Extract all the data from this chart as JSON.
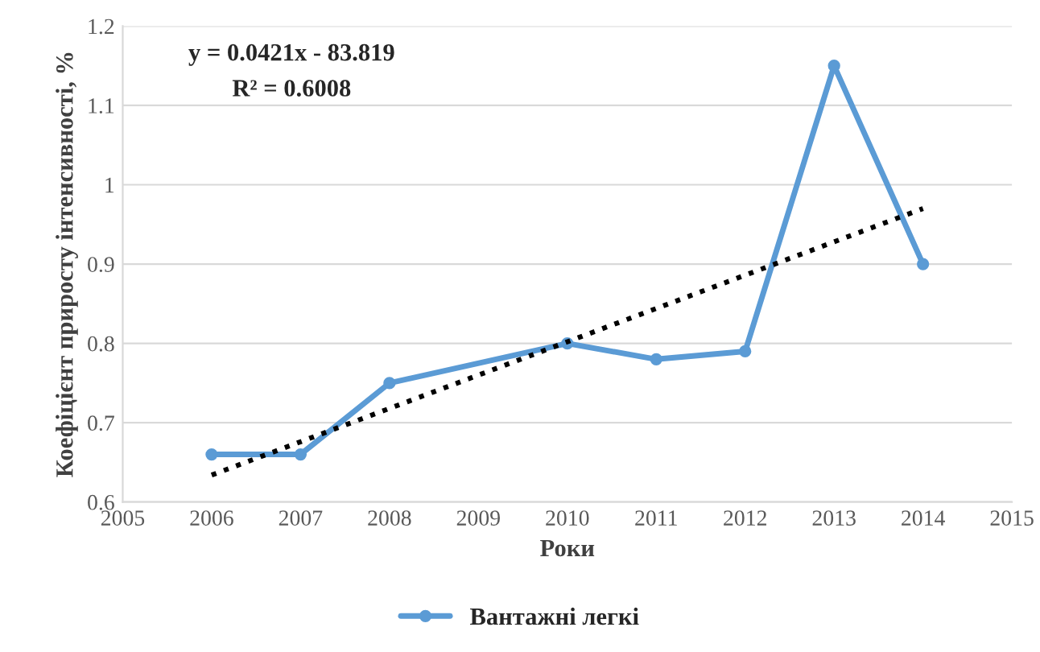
{
  "chart_data": {
    "type": "line",
    "xlabel": "Роки",
    "ylabel": "Коефіцієнт приросту інтенсивності, %",
    "xlim": [
      2005,
      2015
    ],
    "xticks": [
      2005,
      2006,
      2007,
      2008,
      2009,
      2010,
      2011,
      2012,
      2013,
      2014,
      2015
    ],
    "ylim": [
      0.6,
      1.2
    ],
    "yticks": [
      0.6,
      0.7,
      0.8,
      0.9,
      1,
      1.1,
      1.2
    ],
    "grid": "y",
    "legend": "bottom",
    "marker": "circle",
    "line_style": "solid",
    "series": [
      {
        "name": "Вантажні легкі",
        "color": "#5b9bd5",
        "x": [
          2006,
          2007,
          2008,
          2010,
          2011,
          2012,
          2013,
          2014
        ],
        "values": [
          0.66,
          0.66,
          0.75,
          0.8,
          0.78,
          0.79,
          1.15,
          0.9
        ]
      },
      {
        "type": "line",
        "color": "#000000",
        "line_style": "dotted",
        "marker": "none",
        "x": [
          2006,
          2014
        ],
        "values": [
          0.634,
          0.97
        ]
      }
    ],
    "annotations": [
      "y = 0.0421x - 83.819",
      "R² = 0.6008"
    ]
  }
}
